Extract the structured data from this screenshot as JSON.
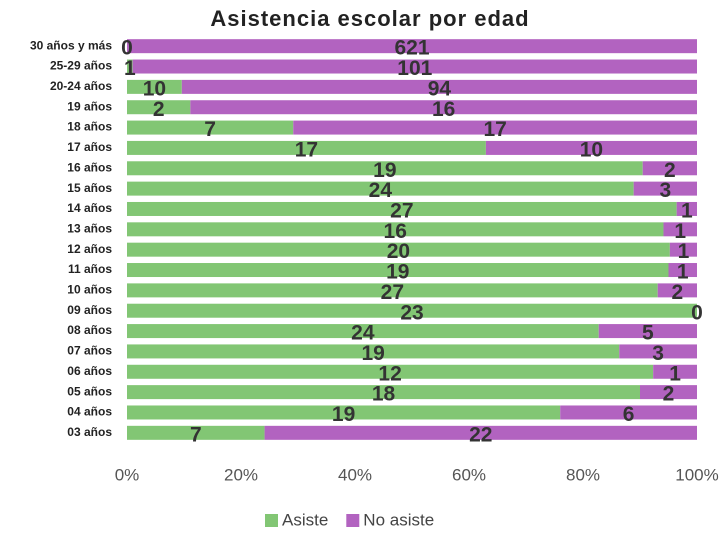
{
  "chart_data": {
    "type": "bar",
    "orientation": "horizontal",
    "stacking": "percent",
    "title": "Asistencia escolar por edad",
    "categories": [
      "30 años y más",
      "25-29 años",
      "20-24 años",
      "19 años",
      "18 años",
      "17 años",
      "16 años",
      "15 años",
      "14 años",
      "13 años",
      "12 años",
      "11 años",
      "10 años",
      "09 años",
      "08 años",
      "07 años",
      "06 años",
      "05 años",
      "04 años",
      "03 años"
    ],
    "series": [
      {
        "name": "Asiste",
        "color": "#82c674",
        "values": [
          0,
          1,
          10,
          2,
          7,
          17,
          19,
          24,
          27,
          16,
          20,
          19,
          27,
          23,
          24,
          19,
          12,
          18,
          19,
          7
        ]
      },
      {
        "name": "No asiste",
        "color": "#b263c0",
        "values": [
          621,
          101,
          94,
          16,
          17,
          10,
          2,
          3,
          1,
          1,
          1,
          1,
          2,
          0,
          5,
          3,
          1,
          2,
          6,
          22
        ]
      }
    ],
    "xlim": [
      0,
      100
    ],
    "xticks": [
      {
        "value": 0,
        "label": "0%"
      },
      {
        "value": 20,
        "label": "20%"
      },
      {
        "value": 40,
        "label": "40%"
      },
      {
        "value": 60,
        "label": "60%"
      },
      {
        "value": 80,
        "label": "80%"
      },
      {
        "value": 100,
        "label": "100%"
      }
    ],
    "legend": "bottom"
  }
}
